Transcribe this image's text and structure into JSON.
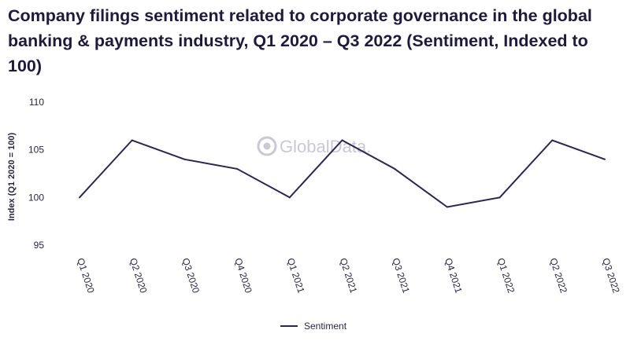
{
  "chart_data": {
    "type": "line",
    "title": "Company filings sentiment related to corporate governance in the global banking & payments industry, Q1 2020 – Q3 2022 (Sentiment, Indexed to 100)",
    "xlabel": "",
    "ylabel": "Index (Q1 2020 = 100)",
    "categories": [
      "Q1 2020",
      "Q2 2020",
      "Q3 2020",
      "Q4 2020",
      "Q1 2021",
      "Q2 2021",
      "Q3 2021",
      "Q4 2021",
      "Q1 2022",
      "Q2 2022",
      "Q3 2022"
    ],
    "series": [
      {
        "name": "Sentiment",
        "values": [
          100,
          106,
          104,
          103,
          100,
          106,
          103,
          99,
          100,
          106,
          104
        ],
        "color": "#2b2550"
      }
    ],
    "ylim": [
      95,
      110
    ],
    "yticks": [
      95,
      100,
      105,
      110
    ],
    "grid": false,
    "legend_position": "bottom-center",
    "watermark": "GlobalData."
  }
}
